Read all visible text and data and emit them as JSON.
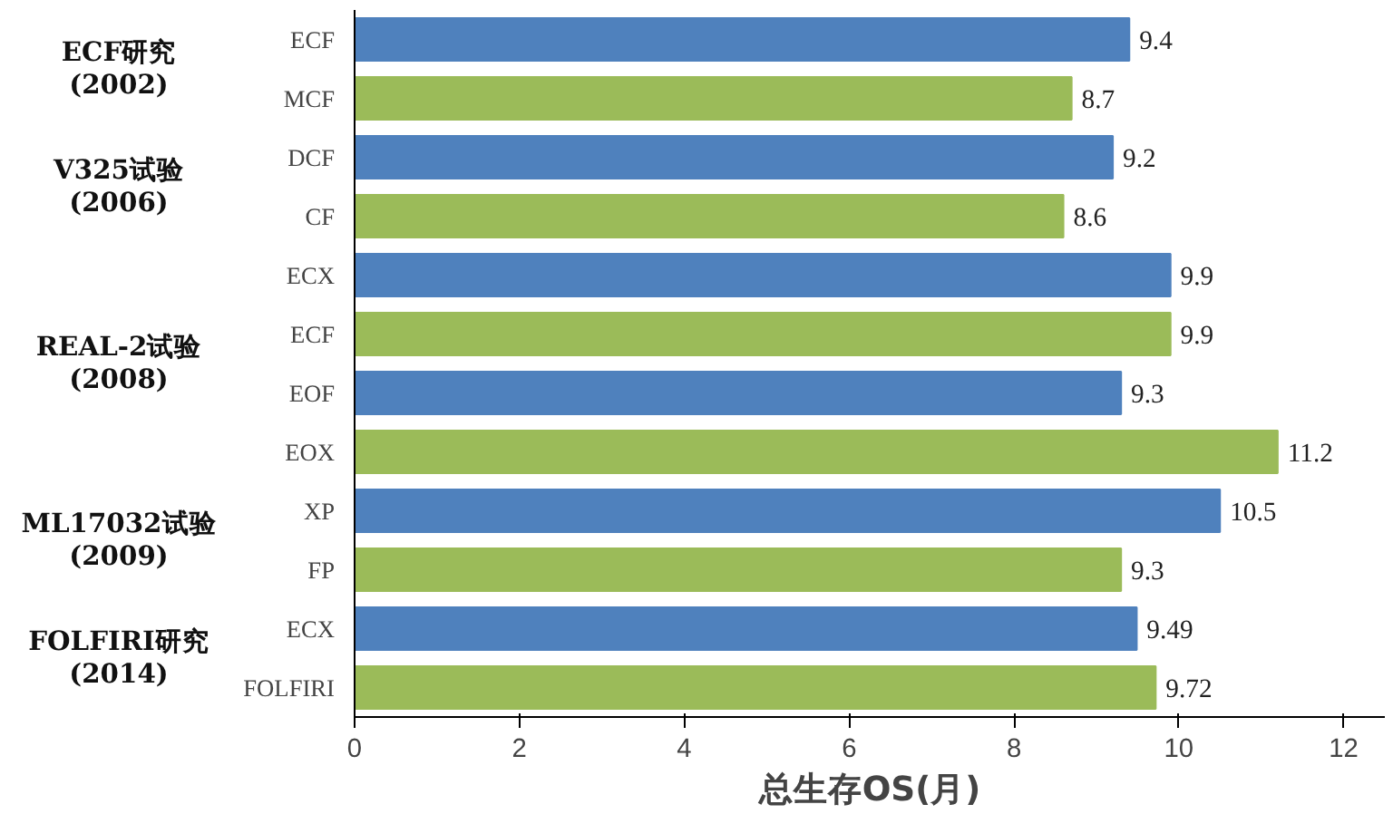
{
  "chart_data": {
    "type": "bar",
    "orientation": "horizontal",
    "xlabel": "总生存OS(月)",
    "categories": [
      "ECF",
      "MCF",
      "DCF",
      "CF",
      "ECX",
      "ECF",
      "EOF",
      "EOX",
      "XP",
      "FP",
      "ECX",
      "FOLFIRI"
    ],
    "values": [
      9.4,
      8.7,
      9.2,
      8.6,
      9.9,
      9.9,
      9.3,
      11.2,
      10.5,
      9.3,
      9.49,
      9.72
    ],
    "colors": [
      "#4f81bd",
      "#9bbb59",
      "#4f81bd",
      "#9bbb59",
      "#4f81bd",
      "#9bbb59",
      "#4f81bd",
      "#9bbb59",
      "#4f81bd",
      "#9bbb59",
      "#4f81bd",
      "#9bbb59"
    ],
    "xlim": [
      0,
      12.5
    ],
    "xticks": [
      0,
      2,
      4,
      6,
      8,
      10,
      12
    ],
    "data_labels": true,
    "grid": false,
    "annotations": [
      "ECF研究\n(2002)",
      "V325试验\n(2006)",
      "REAL-2试验\n(2008)",
      "ML17032试验\n(2009)",
      "FOLFIRI研究\n(2014)"
    ]
  }
}
